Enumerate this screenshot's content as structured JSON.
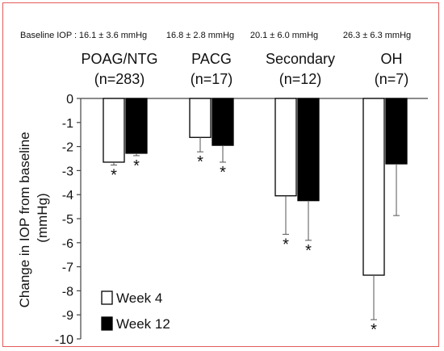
{
  "baseline_label": "Baseline IOP :",
  "chart_data": {
    "type": "bar",
    "title": "",
    "ylabel": "Change in IOP from baseline (mmHg)",
    "ylabel_lines": [
      "Change in IOP from baseline",
      "(mmHg)"
    ],
    "ylim": [
      -10,
      0
    ],
    "yticks": [
      0,
      -1,
      -2,
      -3,
      -4,
      -5,
      -6,
      -7,
      -8,
      -9,
      -10
    ],
    "categories": [
      {
        "name": "POAG/NTG",
        "n": "(n=283)",
        "baseline": "16.1 ± 3.6 mmHg"
      },
      {
        "name": "PACG",
        "n": "(n=17)",
        "baseline": "16.8 ± 2.8 mmHg"
      },
      {
        "name": "Secondary",
        "n": "(n=12)",
        "baseline": "20.1 ± 6.0 mmHg"
      },
      {
        "name": "OH",
        "n": "(n=7)",
        "baseline": "26.3 ± 6.3 mmHg"
      }
    ],
    "series": [
      {
        "name": "Week 4",
        "fill": "#ffffff",
        "values": [
          -2.65,
          -1.62,
          -4.05,
          -7.35
        ],
        "error": [
          0.12,
          0.6,
          1.6,
          1.85
        ],
        "significant": [
          true,
          true,
          true,
          true
        ]
      },
      {
        "name": "Week 12",
        "fill": "#000000",
        "values": [
          -2.28,
          -1.95,
          -4.25,
          -2.72
        ],
        "error": [
          0.1,
          0.7,
          1.65,
          2.15
        ],
        "significant": [
          true,
          true,
          true,
          false
        ]
      }
    ],
    "significance_marker": "*",
    "grid": false,
    "legend_position": "bottom-left"
  },
  "colors": {
    "frame": "#e35a5a",
    "axis": "#444444",
    "bar_edge": "#000000"
  }
}
